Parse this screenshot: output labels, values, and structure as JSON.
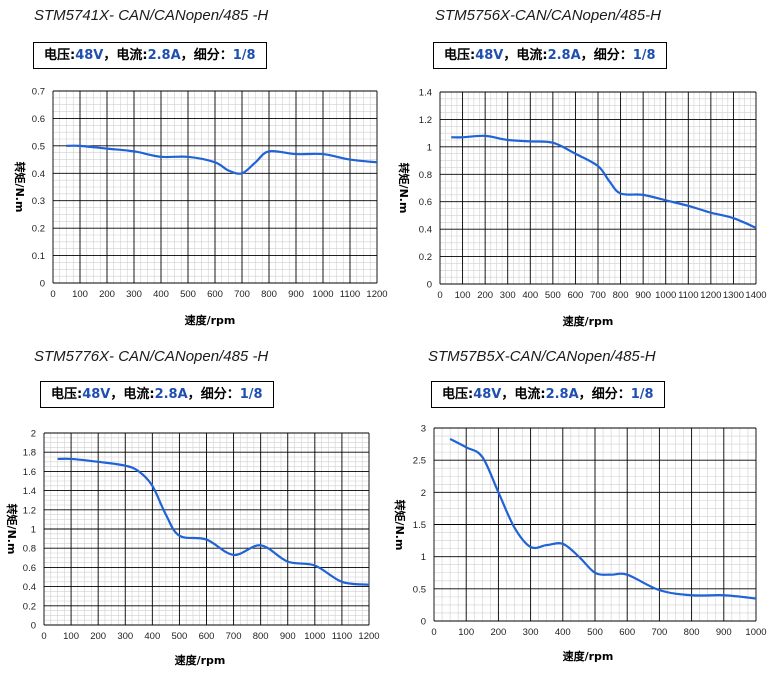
{
  "colors": {
    "curve": "#1f63d6",
    "major_grid": "#000000",
    "minor_grid": "#d0d0d0",
    "spec_value": "#1f4fb0"
  },
  "chart_data": [
    {
      "type": "line",
      "title": "STM5741X- CAN/CANopen/485 -H",
      "spec": {
        "voltage_label": "电压:",
        "voltage": "48V",
        "sep1": "，",
        "current_label": "电流:",
        "current": "2.8A",
        "sep2": "，",
        "micro_label": "细分：",
        "micro": "1/8"
      },
      "xlabel": "速度/rpm",
      "ylabel": "转矩/N.m",
      "xlim": [
        0,
        1200
      ],
      "xstep": 100,
      "ylim": [
        0,
        0.7
      ],
      "ystep": 0.1,
      "xticks": [
        "0",
        "100",
        "200",
        "300",
        "400",
        "500",
        "600",
        "700",
        "800",
        "900",
        "1000",
        "1100",
        "1200"
      ],
      "yticks": [
        "0",
        "0.1",
        "0.2",
        "0.3",
        "0.4",
        "0.5",
        "0.6",
        "0.7"
      ],
      "x": [
        50,
        100,
        200,
        300,
        400,
        500,
        600,
        650,
        700,
        750,
        800,
        900,
        1000,
        1100,
        1200
      ],
      "y": [
        0.5,
        0.5,
        0.49,
        0.48,
        0.46,
        0.46,
        0.44,
        0.41,
        0.4,
        0.44,
        0.48,
        0.47,
        0.47,
        0.45,
        0.44
      ]
    },
    {
      "type": "line",
      "title": "STM5756X-CAN/CANopen/485-H",
      "spec": {
        "voltage_label": "电压:",
        "voltage": "48V",
        "sep1": "，",
        "current_label": "电流:",
        "current": "2.8A",
        "sep2": "，",
        "micro_label": "细分：",
        "micro": "1/8"
      },
      "xlabel": "速度/rpm",
      "ylabel": "转矩/N.m",
      "xlim": [
        0,
        1400
      ],
      "xstep": 100,
      "ylim": [
        0,
        1.4
      ],
      "ystep": 0.2,
      "xticks": [
        "0",
        "100",
        "200",
        "300",
        "400",
        "500",
        "600",
        "700",
        "800",
        "900",
        "1000",
        "1100",
        "1200",
        "1300",
        "1400"
      ],
      "yticks": [
        "0",
        "0.2",
        "0.4",
        "0.6",
        "0.8",
        "1",
        "1.2",
        "1.4"
      ],
      "x": [
        50,
        100,
        200,
        300,
        400,
        500,
        600,
        700,
        750,
        800,
        900,
        1000,
        1100,
        1200,
        1300,
        1400
      ],
      "y": [
        1.07,
        1.07,
        1.08,
        1.05,
        1.04,
        1.03,
        0.95,
        0.86,
        0.75,
        0.66,
        0.65,
        0.61,
        0.57,
        0.52,
        0.48,
        0.41
      ]
    },
    {
      "type": "line",
      "title": "STM5776X- CAN/CANopen/485 -H",
      "spec": {
        "voltage_label": "电压:",
        "voltage": "48V",
        "sep1": "，",
        "current_label": "电流:",
        "current": "2.8A",
        "sep2": "，",
        "micro_label": "细分：",
        "micro": "1/8"
      },
      "xlabel": "速度/rpm",
      "ylabel": "转矩/N.m",
      "xlim": [
        0,
        1200
      ],
      "xstep": 100,
      "ylim": [
        0,
        2
      ],
      "ystep": 0.2,
      "xticks": [
        "0",
        "100",
        "200",
        "300",
        "400",
        "500",
        "600",
        "700",
        "800",
        "900",
        "1000",
        "1100",
        "1200"
      ],
      "yticks": [
        "0",
        "0.2",
        "0.4",
        "0.6",
        "0.8",
        "1",
        "1.2",
        "1.4",
        "1.6",
        "1.8",
        "2"
      ],
      "x": [
        50,
        100,
        200,
        300,
        350,
        400,
        450,
        500,
        600,
        700,
        800,
        900,
        1000,
        1100,
        1200
      ],
      "y": [
        1.73,
        1.73,
        1.7,
        1.66,
        1.6,
        1.45,
        1.15,
        0.93,
        0.89,
        0.73,
        0.83,
        0.66,
        0.62,
        0.45,
        0.42
      ]
    },
    {
      "type": "line",
      "title": "STM57B5X-CAN/CANopen/485-H",
      "spec": {
        "voltage_label": "电压:",
        "voltage": "48V",
        "sep1": "，",
        "current_label": "电流:",
        "current": "2.8A",
        "sep2": "，",
        "micro_label": "细分：",
        "micro": "1/8"
      },
      "xlabel": "速度/rpm",
      "ylabel": "转矩/N.m",
      "xlim": [
        0,
        1000
      ],
      "xstep": 100,
      "ylim": [
        0,
        3
      ],
      "ystep": 0.5,
      "xticks": [
        "0",
        "100",
        "200",
        "300",
        "400",
        "500",
        "600",
        "700",
        "800",
        "900",
        "1000"
      ],
      "yticks": [
        "0",
        "0.5",
        "1",
        "1.5",
        "2",
        "2.5",
        "3"
      ],
      "x": [
        50,
        100,
        150,
        200,
        250,
        300,
        350,
        400,
        450,
        500,
        550,
        600,
        700,
        800,
        900,
        1000
      ],
      "y": [
        2.83,
        2.7,
        2.55,
        2.0,
        1.45,
        1.15,
        1.18,
        1.2,
        1.0,
        0.75,
        0.72,
        0.72,
        0.48,
        0.4,
        0.4,
        0.35
      ]
    }
  ]
}
